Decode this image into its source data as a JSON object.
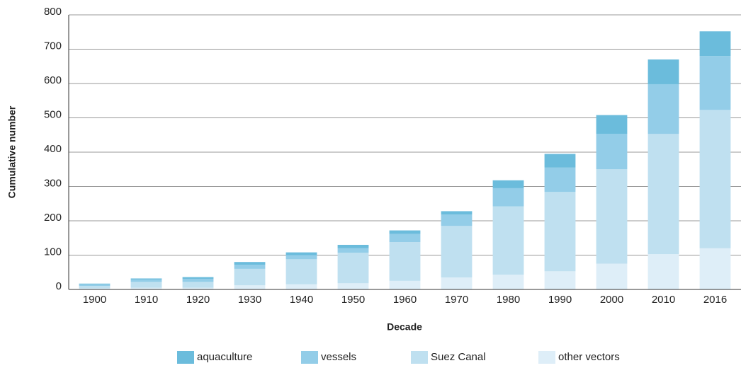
{
  "chart_data": {
    "type": "stacked_bar",
    "xlabel": "Decade",
    "ylabel": "Cumulative number",
    "categories": [
      "1900",
      "1910",
      "1920",
      "1930",
      "1940",
      "1950",
      "1960",
      "1970",
      "1980",
      "1990",
      "2000",
      "2010",
      "2016"
    ],
    "series": [
      {
        "name": "other vectors",
        "color": "#deeef8",
        "values": [
          3,
          5,
          5,
          12,
          15,
          18,
          25,
          35,
          43,
          53,
          75,
          103,
          120
        ]
      },
      {
        "name": "Suez Canal",
        "color": "#bfe0f0",
        "values": [
          7,
          17,
          17,
          48,
          73,
          89,
          113,
          150,
          199,
          231,
          275,
          350,
          403
        ]
      },
      {
        "name": "vessels",
        "color": "#93cde8",
        "values": [
          5,
          7,
          9,
          12,
          12,
          13,
          24,
          33,
          53,
          71,
          103,
          145,
          157
        ]
      },
      {
        "name": "aquaculture",
        "color": "#6bbcdc",
        "values": [
          2,
          3,
          5,
          8,
          8,
          10,
          10,
          10,
          23,
          40,
          55,
          72,
          72
        ]
      }
    ],
    "ylim": [
      0,
      800
    ],
    "yticks": [
      0,
      100,
      200,
      300,
      400,
      500,
      600,
      700,
      800
    ],
    "grid": true
  }
}
